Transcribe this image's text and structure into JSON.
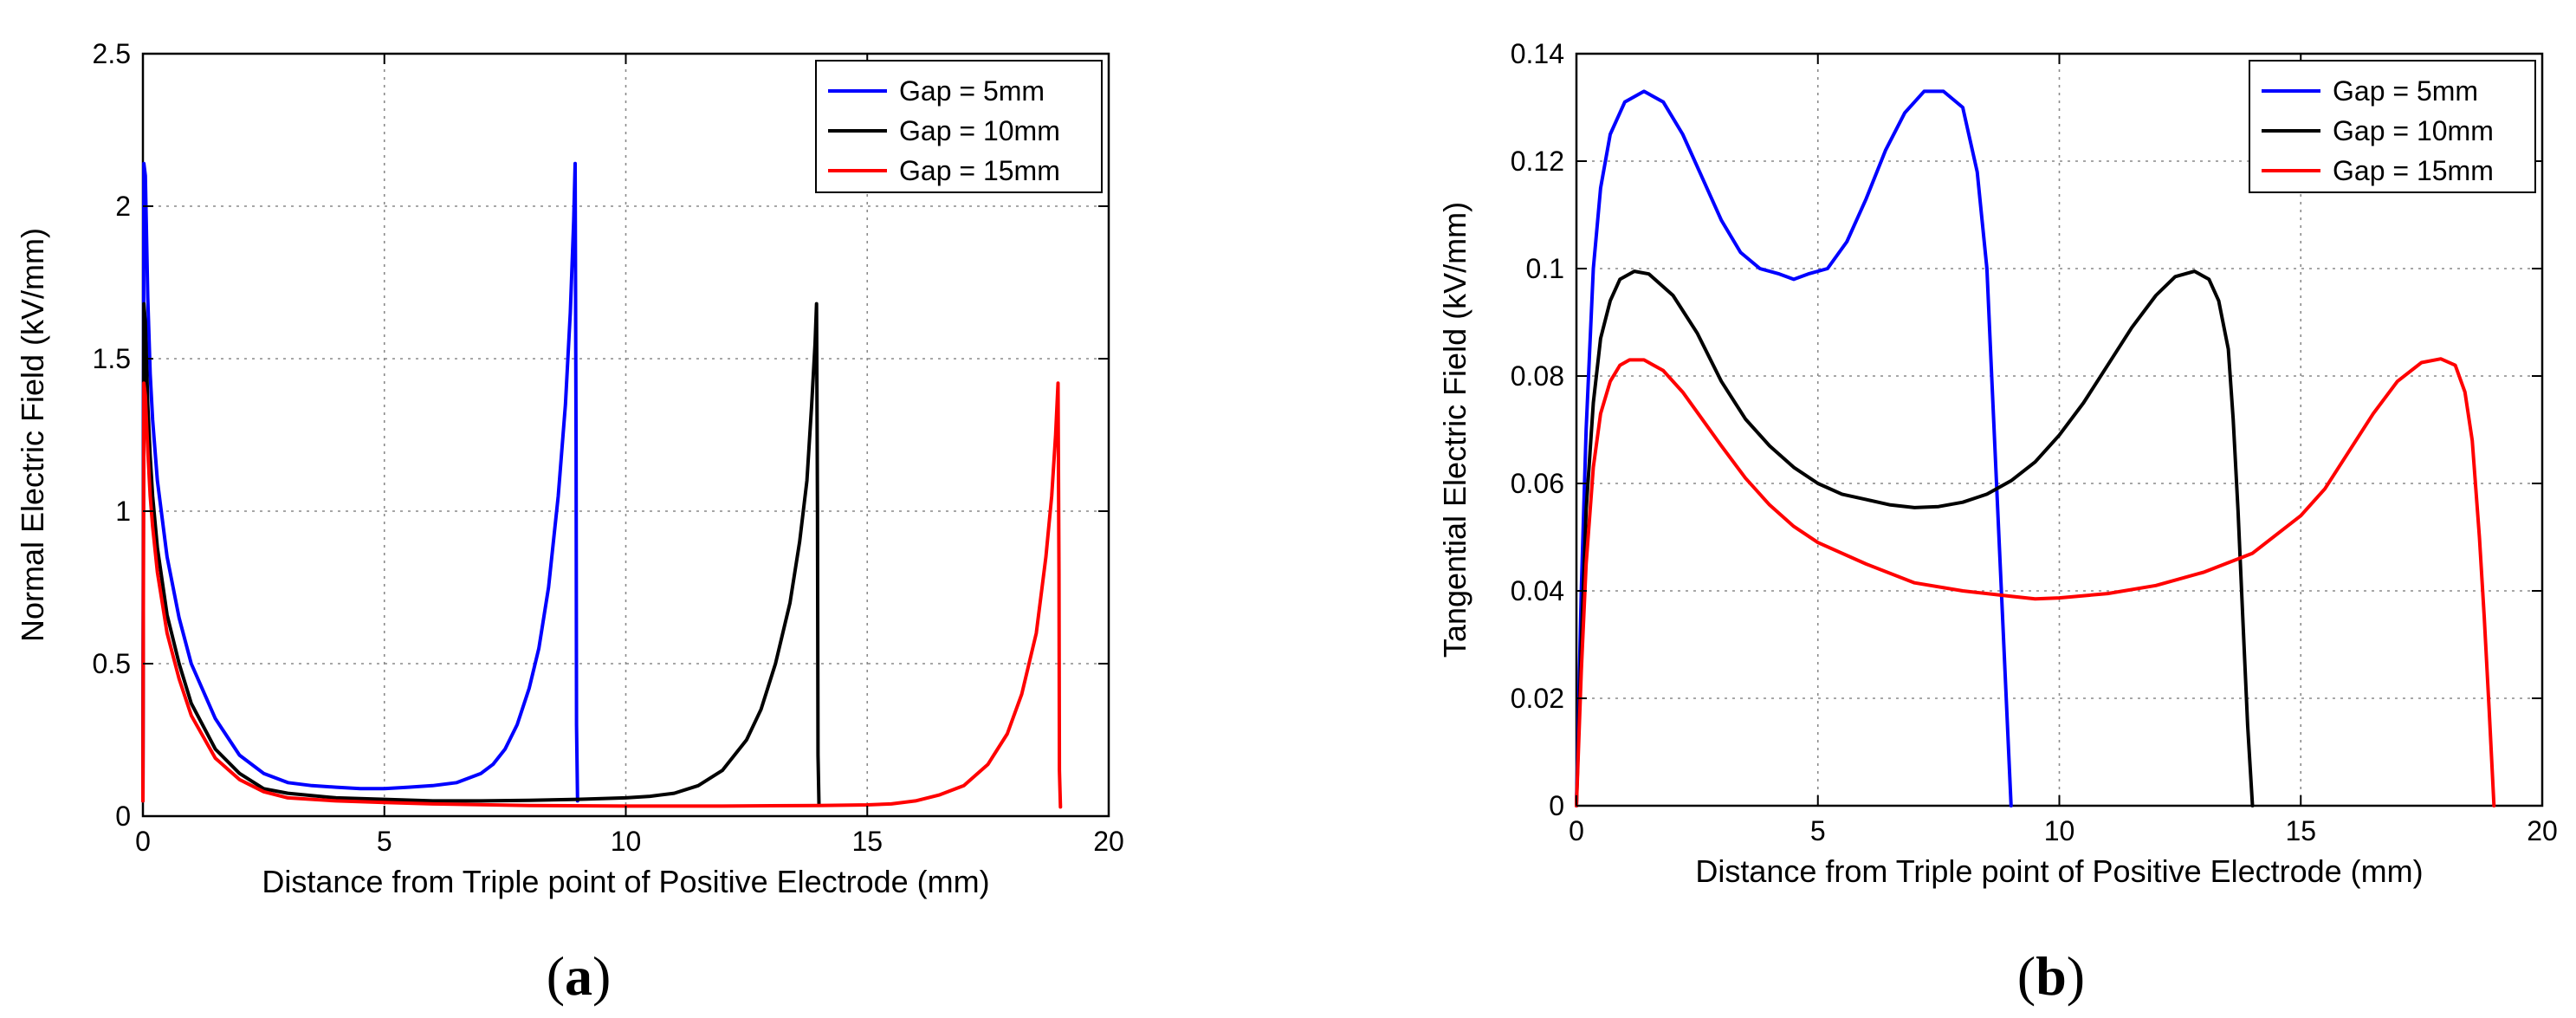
{
  "chart_data": [
    {
      "type": "line",
      "panel_label": "a",
      "title": "",
      "xlabel": "Distance from Triple point of Positive Electrode (mm)",
      "ylabel": "Normal Electric Field (kV/mm)",
      "xlim": [
        0,
        20
      ],
      "ylim": [
        0,
        2.5
      ],
      "xticks": [
        0,
        5,
        10,
        15,
        20
      ],
      "yticks": [
        0,
        0.5,
        1,
        1.5,
        2,
        2.5
      ],
      "xtick_labels": [
        "0",
        "5",
        "10",
        "15",
        "20"
      ],
      "ytick_labels": [
        "0",
        "0.5",
        "1",
        "1.5",
        "2",
        "2.5"
      ],
      "grid": true,
      "legend_position": "top-right",
      "series": [
        {
          "name": "Gap = 5mm",
          "color": "#0000ff",
          "x": [
            0,
            0.02,
            0.05,
            0.1,
            0.15,
            0.2,
            0.3,
            0.5,
            0.75,
            1.0,
            1.5,
            2.0,
            2.5,
            3.0,
            3.5,
            4.0,
            4.5,
            5.0,
            5.5,
            6.0,
            6.5,
            7.0,
            7.25,
            7.5,
            7.75,
            8.0,
            8.2,
            8.4,
            8.6,
            8.75,
            8.85,
            8.92,
            8.95,
            8.97,
            8.98,
            9.0
          ],
          "y": [
            0.05,
            2.14,
            2.1,
            1.7,
            1.45,
            1.3,
            1.1,
            0.85,
            0.65,
            0.5,
            0.32,
            0.2,
            0.14,
            0.11,
            0.1,
            0.095,
            0.09,
            0.09,
            0.095,
            0.1,
            0.11,
            0.14,
            0.17,
            0.22,
            0.3,
            0.42,
            0.55,
            0.75,
            1.05,
            1.35,
            1.65,
            1.95,
            2.14,
            1.2,
            0.3,
            0.05
          ]
        },
        {
          "name": "Gap = 10mm",
          "color": "#000000",
          "x": [
            0,
            0.02,
            0.05,
            0.1,
            0.15,
            0.2,
            0.3,
            0.5,
            0.75,
            1.0,
            1.5,
            2.0,
            2.5,
            3.0,
            4.0,
            5.0,
            6.0,
            7.0,
            8.0,
            9.0,
            10.0,
            10.5,
            11.0,
            11.5,
            12.0,
            12.5,
            12.8,
            13.1,
            13.4,
            13.6,
            13.75,
            13.85,
            13.92,
            13.95,
            13.97,
            13.98,
            14.0
          ],
          "y": [
            0.05,
            1.68,
            1.62,
            1.35,
            1.18,
            1.05,
            0.88,
            0.66,
            0.5,
            0.37,
            0.22,
            0.14,
            0.09,
            0.075,
            0.06,
            0.055,
            0.05,
            0.05,
            0.052,
            0.055,
            0.06,
            0.065,
            0.075,
            0.1,
            0.15,
            0.25,
            0.35,
            0.5,
            0.7,
            0.9,
            1.1,
            1.35,
            1.55,
            1.68,
            1.0,
            0.2,
            0.04
          ]
        },
        {
          "name": "Gap = 15mm",
          "color": "#ff0000",
          "x": [
            0,
            0.02,
            0.05,
            0.1,
            0.15,
            0.2,
            0.3,
            0.5,
            0.75,
            1.0,
            1.5,
            2.0,
            2.5,
            3.0,
            4.0,
            5.0,
            6.0,
            8.0,
            10.0,
            12.0,
            14.0,
            15.0,
            15.5,
            16.0,
            16.5,
            17.0,
            17.5,
            17.9,
            18.2,
            18.5,
            18.7,
            18.82,
            18.9,
            18.95,
            18.97,
            18.98,
            19.0
          ],
          "y": [
            0.05,
            1.42,
            1.38,
            1.2,
            1.05,
            0.95,
            0.8,
            0.6,
            0.45,
            0.33,
            0.19,
            0.12,
            0.08,
            0.06,
            0.05,
            0.045,
            0.04,
            0.035,
            0.033,
            0.033,
            0.035,
            0.037,
            0.04,
            0.05,
            0.07,
            0.1,
            0.17,
            0.27,
            0.4,
            0.6,
            0.85,
            1.05,
            1.25,
            1.42,
            0.8,
            0.15,
            0.03
          ]
        }
      ]
    },
    {
      "type": "line",
      "panel_label": "b",
      "title": "",
      "xlabel": "Distance from Triple point of Positive Electrode (mm)",
      "ylabel": "Tangential Electric Field (kV/mm)",
      "xlim": [
        0,
        20
      ],
      "ylim": [
        0,
        0.14
      ],
      "xticks": [
        0,
        5,
        10,
        15,
        20
      ],
      "yticks": [
        0,
        0.02,
        0.04,
        0.06,
        0.08,
        0.1,
        0.12,
        0.14
      ],
      "xtick_labels": [
        "0",
        "5",
        "10",
        "15",
        "20"
      ],
      "ytick_labels": [
        "0",
        "0.02",
        "0.04",
        "0.06",
        "0.08",
        "0.1",
        "0.12",
        "0.14"
      ],
      "grid": true,
      "legend_position": "top-right",
      "series": [
        {
          "name": "Gap = 5mm",
          "color": "#0000ff",
          "x": [
            0,
            0.1,
            0.2,
            0.35,
            0.5,
            0.7,
            1.0,
            1.4,
            1.8,
            2.2,
            2.6,
            3.0,
            3.4,
            3.8,
            4.2,
            4.5,
            4.8,
            5.2,
            5.6,
            6.0,
            6.4,
            6.8,
            7.2,
            7.6,
            8.0,
            8.3,
            8.5,
            8.6,
            8.7,
            8.8,
            8.9,
            9.0
          ],
          "y": [
            0,
            0.04,
            0.07,
            0.1,
            0.115,
            0.125,
            0.131,
            0.133,
            0.131,
            0.125,
            0.117,
            0.109,
            0.103,
            0.1,
            0.099,
            0.098,
            0.099,
            0.1,
            0.105,
            0.113,
            0.122,
            0.129,
            0.133,
            0.133,
            0.13,
            0.118,
            0.1,
            0.08,
            0.06,
            0.04,
            0.02,
            0
          ]
        },
        {
          "name": "Gap = 10mm",
          "color": "#000000",
          "x": [
            0,
            0.1,
            0.2,
            0.35,
            0.5,
            0.7,
            0.9,
            1.2,
            1.5,
            2.0,
            2.5,
            3.0,
            3.5,
            4.0,
            4.5,
            5.0,
            5.5,
            6.0,
            6.5,
            7.0,
            7.5,
            8.0,
            8.5,
            9.0,
            9.5,
            10.0,
            10.5,
            11.0,
            11.5,
            12.0,
            12.4,
            12.8,
            13.1,
            13.3,
            13.5,
            13.6,
            13.7,
            13.8,
            13.9,
            14.0
          ],
          "y": [
            0,
            0.03,
            0.055,
            0.075,
            0.087,
            0.094,
            0.098,
            0.0995,
            0.099,
            0.095,
            0.088,
            0.079,
            0.072,
            0.067,
            0.063,
            0.06,
            0.058,
            0.057,
            0.056,
            0.0555,
            0.0557,
            0.0565,
            0.058,
            0.0605,
            0.064,
            0.069,
            0.075,
            0.082,
            0.089,
            0.095,
            0.0985,
            0.0995,
            0.098,
            0.094,
            0.085,
            0.072,
            0.055,
            0.035,
            0.015,
            0
          ]
        },
        {
          "name": "Gap = 15mm",
          "color": "#ff0000",
          "x": [
            0,
            0.1,
            0.2,
            0.35,
            0.5,
            0.7,
            0.9,
            1.1,
            1.4,
            1.8,
            2.2,
            2.6,
            3.0,
            3.5,
            4.0,
            4.5,
            5.0,
            6.0,
            7.0,
            8.0,
            9.0,
            9.5,
            10.0,
            11.0,
            12.0,
            13.0,
            14.0,
            15.0,
            15.5,
            16.0,
            16.5,
            17.0,
            17.5,
            17.9,
            18.2,
            18.4,
            18.55,
            18.7,
            18.8,
            18.9,
            19.0
          ],
          "y": [
            0,
            0.025,
            0.045,
            0.063,
            0.073,
            0.079,
            0.082,
            0.083,
            0.083,
            0.081,
            0.077,
            0.072,
            0.067,
            0.061,
            0.056,
            0.052,
            0.049,
            0.045,
            0.0415,
            0.04,
            0.039,
            0.0385,
            0.0387,
            0.0395,
            0.041,
            0.0435,
            0.047,
            0.054,
            0.059,
            0.066,
            0.073,
            0.079,
            0.0825,
            0.0832,
            0.082,
            0.077,
            0.068,
            0.05,
            0.035,
            0.018,
            0
          ]
        }
      ]
    }
  ]
}
